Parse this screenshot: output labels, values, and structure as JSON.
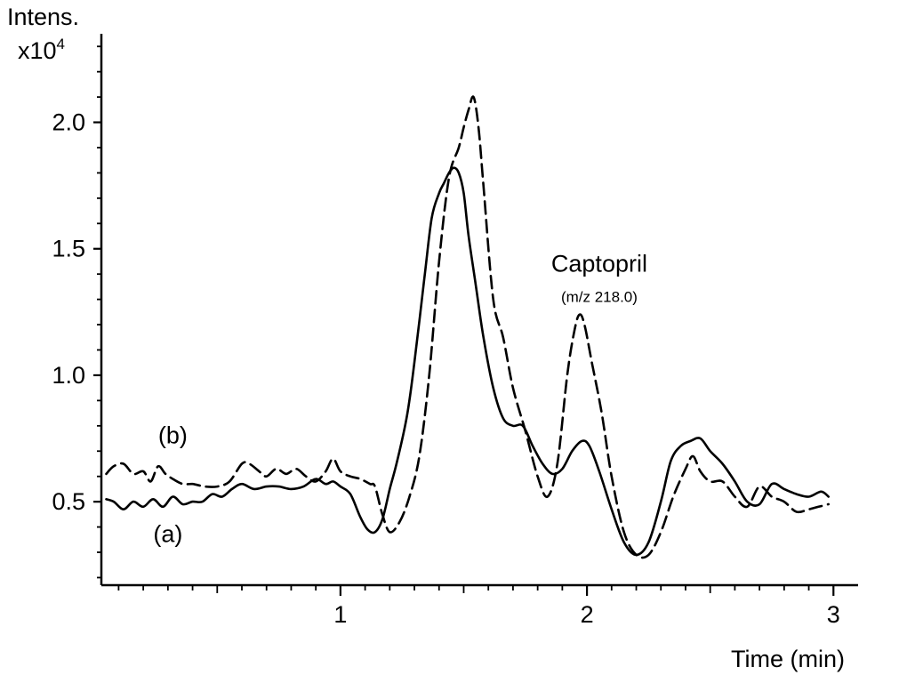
{
  "chart_data": {
    "type": "line",
    "ylabel_line1": "Intens.",
    "ylabel_multiplier": "x10",
    "ylabel_exponent": "4",
    "xlabel": "Time (min)",
    "xlim": [
      0.03,
      3.1
    ],
    "ylim": [
      0.17,
      2.35
    ],
    "x_ticks": [
      1,
      2,
      3
    ],
    "x_tick_labels": [
      "1",
      "2",
      "3"
    ],
    "y_ticks": [
      0.5,
      1.0,
      1.5,
      2.0
    ],
    "y_tick_labels": [
      "0.5",
      "1.0",
      "1.5",
      "2.0"
    ],
    "grid": false,
    "legend": "none",
    "series": [
      {
        "name": "(a)",
        "style": "solid",
        "color": "#000000",
        "x": [
          0.05,
          0.08,
          0.12,
          0.16,
          0.2,
          0.24,
          0.28,
          0.32,
          0.36,
          0.4,
          0.44,
          0.48,
          0.52,
          0.56,
          0.6,
          0.65,
          0.7,
          0.75,
          0.8,
          0.85,
          0.9,
          0.94,
          0.97,
          1.0,
          1.04,
          1.08,
          1.11,
          1.14,
          1.17,
          1.2,
          1.23,
          1.27,
          1.3,
          1.34,
          1.37,
          1.4,
          1.42,
          1.44,
          1.46,
          1.48,
          1.5,
          1.52,
          1.55,
          1.58,
          1.62,
          1.66,
          1.7,
          1.74,
          1.78,
          1.82,
          1.86,
          1.9,
          1.94,
          1.98,
          2.01,
          2.05,
          2.1,
          2.15,
          2.2,
          2.25,
          2.3,
          2.34,
          2.38,
          2.42,
          2.46,
          2.5,
          2.55,
          2.6,
          2.65,
          2.7,
          2.75,
          2.8,
          2.85,
          2.9,
          2.95,
          2.98
        ],
        "y": [
          0.51,
          0.5,
          0.47,
          0.5,
          0.48,
          0.51,
          0.48,
          0.52,
          0.49,
          0.5,
          0.5,
          0.53,
          0.52,
          0.55,
          0.57,
          0.55,
          0.56,
          0.56,
          0.55,
          0.56,
          0.59,
          0.57,
          0.58,
          0.56,
          0.53,
          0.44,
          0.39,
          0.38,
          0.43,
          0.55,
          0.66,
          0.84,
          1.05,
          1.38,
          1.62,
          1.72,
          1.76,
          1.8,
          1.82,
          1.8,
          1.72,
          1.55,
          1.35,
          1.15,
          0.95,
          0.83,
          0.8,
          0.8,
          0.72,
          0.65,
          0.61,
          0.63,
          0.7,
          0.74,
          0.72,
          0.62,
          0.47,
          0.34,
          0.29,
          0.34,
          0.5,
          0.66,
          0.72,
          0.74,
          0.75,
          0.7,
          0.65,
          0.58,
          0.5,
          0.49,
          0.57,
          0.55,
          0.53,
          0.52,
          0.54,
          0.52
        ]
      },
      {
        "name": "(b)",
        "style": "dashed",
        "color": "#000000",
        "x": [
          0.05,
          0.08,
          0.12,
          0.16,
          0.2,
          0.23,
          0.26,
          0.29,
          0.32,
          0.36,
          0.4,
          0.45,
          0.5,
          0.55,
          0.6,
          0.63,
          0.67,
          0.7,
          0.74,
          0.78,
          0.82,
          0.86,
          0.9,
          0.94,
          0.97,
          1.0,
          1.04,
          1.08,
          1.12,
          1.14,
          1.17,
          1.2,
          1.24,
          1.28,
          1.32,
          1.36,
          1.4,
          1.44,
          1.48,
          1.5,
          1.52,
          1.54,
          1.56,
          1.58,
          1.62,
          1.66,
          1.7,
          1.75,
          1.8,
          1.84,
          1.88,
          1.92,
          1.95,
          1.97,
          1.99,
          2.02,
          2.06,
          2.1,
          2.15,
          2.2,
          2.25,
          2.3,
          2.35,
          2.4,
          2.43,
          2.46,
          2.5,
          2.55,
          2.6,
          2.65,
          2.7,
          2.75,
          2.8,
          2.85,
          2.9,
          2.94,
          2.98
        ],
        "y": [
          0.61,
          0.64,
          0.65,
          0.61,
          0.62,
          0.58,
          0.64,
          0.61,
          0.59,
          0.57,
          0.57,
          0.56,
          0.56,
          0.58,
          0.65,
          0.65,
          0.62,
          0.6,
          0.63,
          0.61,
          0.63,
          0.6,
          0.58,
          0.62,
          0.67,
          0.62,
          0.6,
          0.59,
          0.57,
          0.56,
          0.45,
          0.38,
          0.42,
          0.52,
          0.68,
          1.0,
          1.45,
          1.78,
          1.9,
          1.98,
          2.05,
          2.1,
          1.98,
          1.75,
          1.3,
          1.15,
          0.95,
          0.78,
          0.6,
          0.52,
          0.65,
          1.0,
          1.18,
          1.24,
          1.2,
          1.05,
          0.85,
          0.6,
          0.38,
          0.29,
          0.29,
          0.38,
          0.52,
          0.63,
          0.68,
          0.62,
          0.58,
          0.58,
          0.52,
          0.48,
          0.56,
          0.52,
          0.5,
          0.46,
          0.47,
          0.48,
          0.49
        ]
      }
    ],
    "annotations": [
      {
        "text": "(b)",
        "x": 0.32,
        "y": 0.73,
        "anchor": "middle"
      },
      {
        "text": "(a)",
        "x": 0.3,
        "y": 0.34,
        "anchor": "middle"
      },
      {
        "text": "Captopril",
        "x": 2.05,
        "y": 1.41,
        "anchor": "middle",
        "size": 27
      },
      {
        "text": "(m/z 218.0)",
        "x": 2.05,
        "y": 1.29,
        "anchor": "middle",
        "size": 17
      }
    ]
  }
}
